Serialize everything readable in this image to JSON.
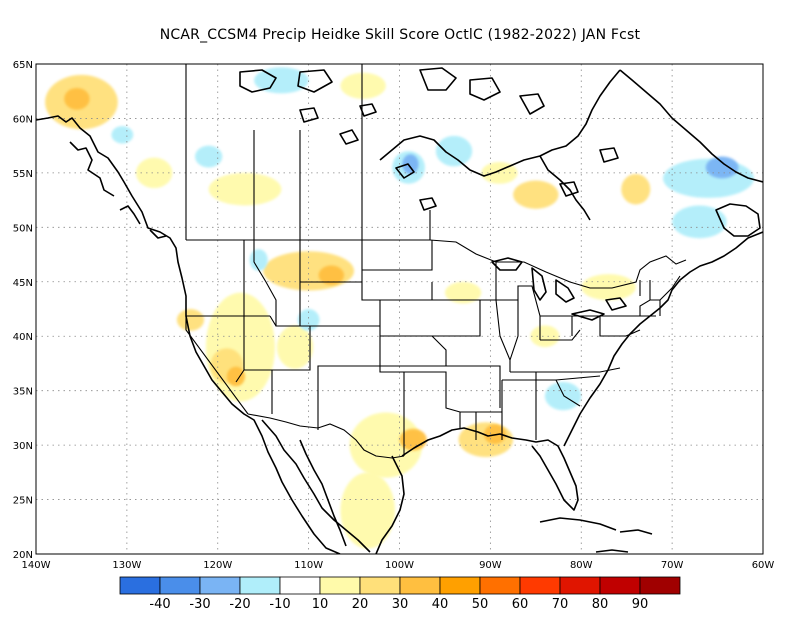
{
  "title": "NCAR_CCSM4 Precip Heidke Skill Score OctlC (1982-2022) JAN Fcst",
  "map": {
    "lon_range": [
      -140,
      -60
    ],
    "lat_range": [
      20,
      65
    ],
    "lon_ticks": [
      {
        "value": -140,
        "label": "140W"
      },
      {
        "value": -130,
        "label": "130W"
      },
      {
        "value": -120,
        "label": "120W"
      },
      {
        "value": -110,
        "label": "110W"
      },
      {
        "value": -100,
        "label": "100W"
      },
      {
        "value": -90,
        "label": "90W"
      },
      {
        "value": -80,
        "label": "80W"
      },
      {
        "value": -70,
        "label": "70W"
      },
      {
        "value": -60,
        "label": "60W"
      }
    ],
    "lat_ticks": [
      {
        "value": 20,
        "label": "20N"
      },
      {
        "value": 25,
        "label": "25N"
      },
      {
        "value": 30,
        "label": "30N"
      },
      {
        "value": 35,
        "label": "35N"
      },
      {
        "value": 40,
        "label": "40N"
      },
      {
        "value": 45,
        "label": "45N"
      },
      {
        "value": 50,
        "label": "50N"
      },
      {
        "value": 55,
        "label": "55N"
      },
      {
        "value": 60,
        "label": "60N"
      },
      {
        "value": 65,
        "label": "65N"
      }
    ],
    "grid": "dotted"
  },
  "colorbar": {
    "colors": [
      "#2a6fe0",
      "#4a8eea",
      "#7ab4f4",
      "#b0eefa",
      "#ffffff",
      "#fffaaa",
      "#ffe07a",
      "#ffbf40",
      "#ffa000",
      "#ff7000",
      "#ff3a00",
      "#e01500",
      "#c00000",
      "#a00000"
    ],
    "labels": [
      "-40",
      "-30",
      "-20",
      "-10",
      "10",
      "20",
      "30",
      "40",
      "50",
      "60",
      "70",
      "80",
      "90"
    ]
  },
  "anomalies": [
    {
      "lon": -135,
      "lat": 61.5,
      "rx": 4,
      "ry": 2.5,
      "level": 6,
      "name": "alaska-yellow"
    },
    {
      "lon": -135.5,
      "lat": 61.8,
      "rx": 1.4,
      "ry": 1.0,
      "level": 7,
      "name": "alaska-orange"
    },
    {
      "lon": -127,
      "lat": 55,
      "rx": 2,
      "ry": 1.4,
      "level": 5,
      "name": "bc-yellow"
    },
    {
      "lon": -117,
      "lat": 53.5,
      "rx": 4,
      "ry": 1.5,
      "level": 5,
      "name": "alberta-yellow"
    },
    {
      "lon": -130.5,
      "lat": 58.5,
      "rx": 1.2,
      "ry": 0.8,
      "level": 3,
      "name": "yukon-blue"
    },
    {
      "lon": -121,
      "lat": 56.5,
      "rx": 1.5,
      "ry": 1,
      "level": 3,
      "name": "bc-blue"
    },
    {
      "lon": -113,
      "lat": 63.5,
      "rx": 3,
      "ry": 1.2,
      "level": 3,
      "name": "nwt-blue"
    },
    {
      "lon": -104,
      "lat": 63,
      "rx": 2.5,
      "ry": 1.2,
      "level": 5,
      "name": "nwt-yellow"
    },
    {
      "lon": -99,
      "lat": 55.5,
      "rx": 1.8,
      "ry": 1.5,
      "level": 3,
      "name": "manitoba-blue"
    },
    {
      "lon": -98.8,
      "lat": 55.8,
      "rx": 0.9,
      "ry": 0.9,
      "level": 2,
      "name": "manitoba-blue-core"
    },
    {
      "lon": -94,
      "lat": 57,
      "rx": 2,
      "ry": 1.4,
      "level": 3,
      "name": "hudson-blue"
    },
    {
      "lon": -89,
      "lat": 55,
      "rx": 2,
      "ry": 1,
      "level": 5,
      "name": "ontario-yellow"
    },
    {
      "lon": -85,
      "lat": 53,
      "rx": 2.5,
      "ry": 1.3,
      "level": 6,
      "name": "ontario-yellow-2"
    },
    {
      "lon": -74,
      "lat": 53.5,
      "rx": 1.6,
      "ry": 1.4,
      "level": 6,
      "name": "quebec-yellow"
    },
    {
      "lon": -66,
      "lat": 54.5,
      "rx": 5,
      "ry": 1.8,
      "level": 3,
      "name": "labrador-blue"
    },
    {
      "lon": -64.5,
      "lat": 55.5,
      "rx": 1.8,
      "ry": 1.0,
      "level": 2,
      "name": "labrador-blue-core"
    },
    {
      "lon": -67,
      "lat": 50.5,
      "rx": 3,
      "ry": 1.5,
      "level": 3,
      "name": "gulf-blue"
    },
    {
      "lon": -110,
      "lat": 46,
      "rx": 5,
      "ry": 1.8,
      "level": 6,
      "name": "montana-yellow"
    },
    {
      "lon": -107.5,
      "lat": 45.6,
      "rx": 1.4,
      "ry": 0.9,
      "level": 7,
      "name": "montana-orange"
    },
    {
      "lon": -117.5,
      "lat": 39,
      "rx": 3.8,
      "ry": 5,
      "level": 5,
      "name": "nevada-yellow"
    },
    {
      "lon": -119,
      "lat": 37.3,
      "rx": 1.8,
      "ry": 1.6,
      "level": 6,
      "name": "sierra-yellow"
    },
    {
      "lon": -118,
      "lat": 36.3,
      "rx": 1,
      "ry": 0.9,
      "level": 7,
      "name": "sierra-orange"
    },
    {
      "lon": -123,
      "lat": 41.5,
      "rx": 1.5,
      "ry": 1,
      "level": 6,
      "name": "oregon-yellow"
    },
    {
      "lon": -111.5,
      "lat": 39,
      "rx": 2,
      "ry": 2,
      "level": 5,
      "name": "utah-yellow"
    },
    {
      "lon": -101.5,
      "lat": 30,
      "rx": 4,
      "ry": 3,
      "level": 5,
      "name": "texas-yellow"
    },
    {
      "lon": -98.5,
      "lat": 30.5,
      "rx": 1.5,
      "ry": 1,
      "level": 7,
      "name": "texas-orange"
    },
    {
      "lon": -103.5,
      "lat": 24,
      "rx": 3,
      "ry": 3.5,
      "level": 5,
      "name": "mexico-yellow"
    },
    {
      "lon": -90.5,
      "lat": 30.5,
      "rx": 3,
      "ry": 1.6,
      "level": 6,
      "name": "louisiana-yellow"
    },
    {
      "lon": -89.5,
      "lat": 31,
      "rx": 1.2,
      "ry": 0.9,
      "level": 7,
      "name": "louisiana-orange"
    },
    {
      "lon": -82,
      "lat": 34.5,
      "rx": 2,
      "ry": 1.3,
      "level": 3,
      "name": "carolina-blue"
    },
    {
      "lon": -84,
      "lat": 40,
      "rx": 1.6,
      "ry": 1,
      "level": 5,
      "name": "ohio-yellow"
    },
    {
      "lon": -77,
      "lat": 44.5,
      "rx": 3,
      "ry": 1.2,
      "level": 5,
      "name": "nyq-yellow"
    },
    {
      "lon": -93,
      "lat": 44,
      "rx": 2,
      "ry": 1,
      "level": 5,
      "name": "minnesota-yellow"
    },
    {
      "lon": -115.5,
      "lat": 47,
      "rx": 1,
      "ry": 1,
      "level": 3,
      "name": "idaho-blue"
    },
    {
      "lon": -110,
      "lat": 41.5,
      "rx": 1.2,
      "ry": 1,
      "level": 3,
      "name": "wyoming-blue"
    }
  ]
}
